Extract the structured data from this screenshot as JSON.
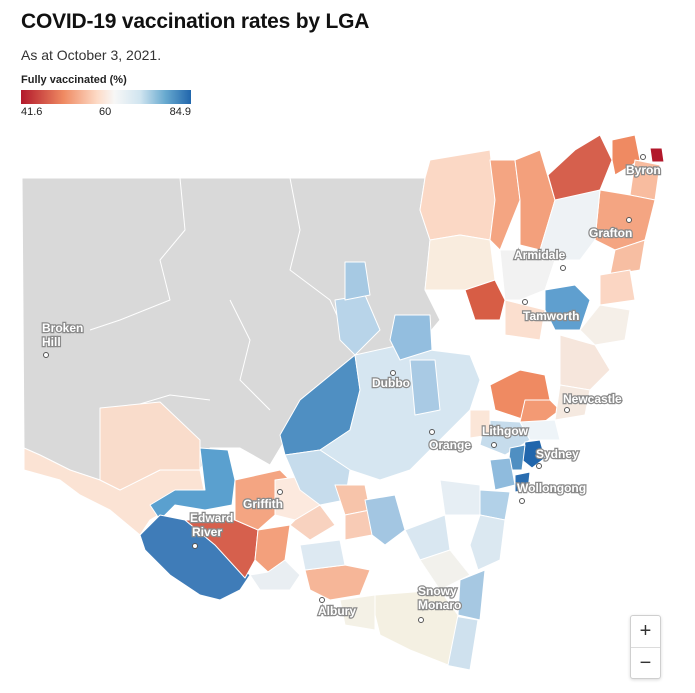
{
  "title": "COVID-19 vaccination rates by LGA",
  "subtitle": "As at October 3, 2021.",
  "legend": {
    "title": "Fully vaccinated (%)",
    "min_label": "41.6",
    "mid_label": "60",
    "max_label": "84.9",
    "min": 41.6,
    "mid": 60,
    "max": 84.9,
    "colors": [
      "#b2182b",
      "#ef8a62",
      "#fddbc7",
      "#f7f7f7",
      "#d1e5f0",
      "#67a9cf",
      "#2166ac"
    ]
  },
  "places": {
    "byron": "Byron",
    "grafton": "Grafton",
    "armidale": "Armidale",
    "tamworth": "Tamworth",
    "broken_hill": [
      "Broken",
      "Hill"
    ],
    "dubbo": "Dubbo",
    "newcastle": "Newcastle",
    "orange": "Orange",
    "lithgow": "Lithgow",
    "sydney": "Sydney",
    "wollongong": "Wollongong",
    "griffith": "Griffith",
    "edward_river": [
      "Edward",
      "River"
    ],
    "albury": "Albury",
    "snowy_monaro": [
      "Snowy",
      "Monaro"
    ]
  },
  "controls": {
    "zoom_in": "+",
    "zoom_out": "−"
  },
  "map_colors": {
    "no_data": "#d9d9d9",
    "border": "#ffffff"
  }
}
